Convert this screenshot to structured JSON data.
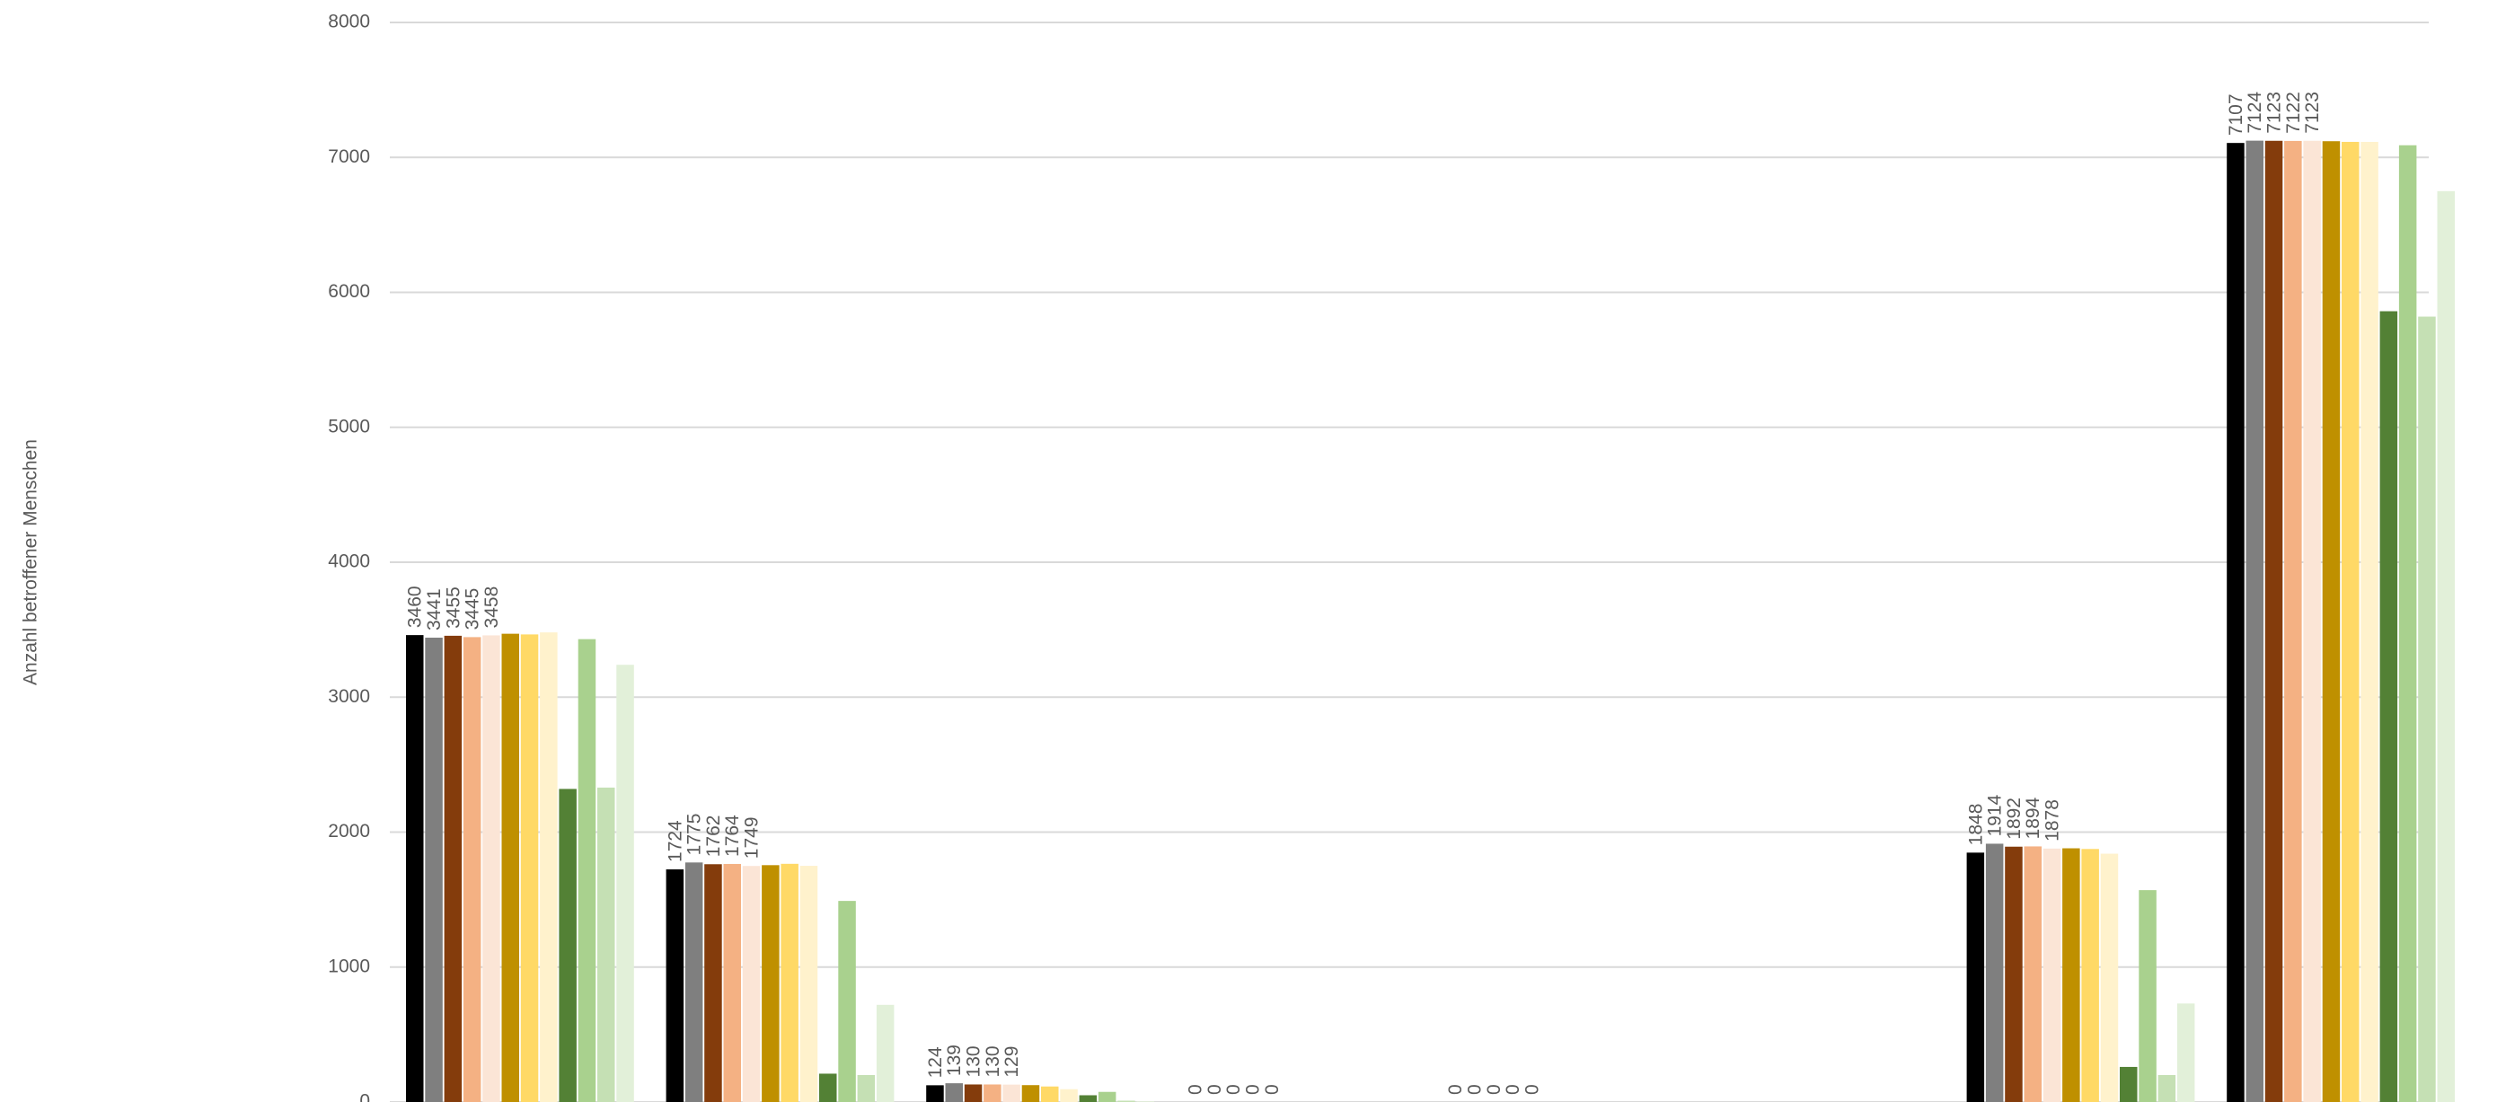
{
  "chart_data": {
    "type": "bar",
    "y_label": "Anzahl betroffener Menschen",
    "categories": [
      null,
      null,
      null,
      null,
      null,
      null,
      null,
      null
    ],
    "ylim": [
      0,
      8000
    ],
    "yticks": [
      0,
      1000,
      2000,
      3000,
      4000,
      5000,
      6000,
      7000,
      8000
    ],
    "grid": true,
    "series": [
      {
        "color": "#000000",
        "data_labels": true,
        "values": [
          3460,
          1724,
          124,
          0,
          0,
          null,
          1848,
          7107
        ]
      },
      {
        "color": "#7f7f7f",
        "data_labels": true,
        "values": [
          3441,
          1775,
          139,
          0,
          0,
          null,
          1914,
          7124
        ]
      },
      {
        "color": "#843c0c",
        "data_labels": true,
        "values": [
          3455,
          1762,
          130,
          0,
          0,
          null,
          1892,
          7123
        ]
      },
      {
        "color": "#f4b183",
        "data_labels": true,
        "values": [
          3445,
          1764,
          130,
          0,
          0,
          null,
          1894,
          7122
        ]
      },
      {
        "color": "#fbe5d6",
        "data_labels": true,
        "values": [
          3458,
          1749,
          129,
          0,
          0,
          null,
          1878,
          7123
        ]
      },
      {
        "color": "#bf9000",
        "data_labels": false,
        "values": [
          3470,
          1755,
          125,
          0,
          0,
          null,
          1880,
          7120
        ]
      },
      {
        "color": "#ffd966",
        "data_labels": false,
        "values": [
          3465,
          1765,
          115,
          0,
          0,
          null,
          1875,
          7115
        ]
      },
      {
        "color": "#fff2cc",
        "data_labels": false,
        "values": [
          3480,
          1750,
          95,
          0,
          0,
          null,
          1840,
          7115
        ]
      },
      {
        "color": "#538135",
        "data_labels": false,
        "values": [
          2320,
          210,
          50,
          0,
          0,
          null,
          260,
          5860
        ]
      },
      {
        "color": "#a9d18e",
        "data_labels": false,
        "values": [
          3430,
          1490,
          75,
          0,
          0,
          null,
          1570,
          7090
        ]
      },
      {
        "color": "#c5e0b4",
        "data_labels": false,
        "values": [
          2330,
          200,
          10,
          0,
          0,
          null,
          200,
          5820
        ]
      },
      {
        "color": "#e2f0d9",
        "data_labels": false,
        "values": [
          3240,
          720,
          5,
          0,
          0,
          null,
          730,
          6750
        ]
      }
    ]
  }
}
